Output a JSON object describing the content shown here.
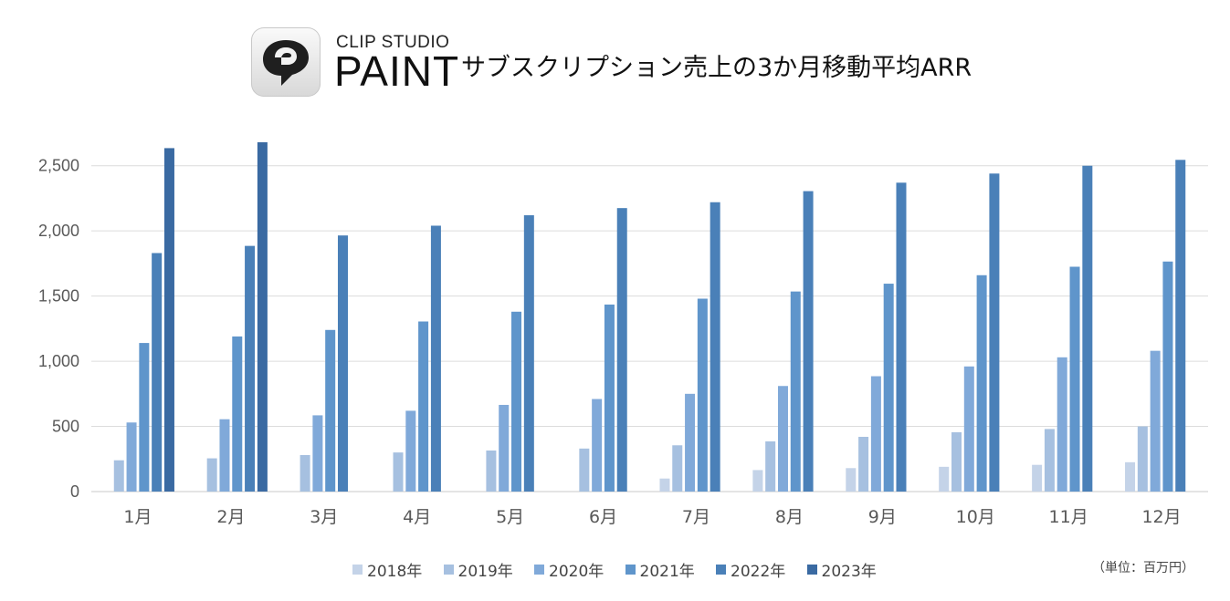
{
  "brand": {
    "line1": "CLIP STUDIO",
    "line2": "PAINT",
    "logo_icon": "clip-studio-paint-logo-icon"
  },
  "unit_note": "（単位：百万円）",
  "colors": [
    "#c4d3e8",
    "#a6c0e0",
    "#80a9d9",
    "#5f95cb",
    "#4a80b8",
    "#3a6aa2"
  ],
  "chart_data": {
    "type": "bar",
    "title": "サブスクリプション売上の3か月移動平均ARR",
    "xlabel": "",
    "ylabel": "",
    "ylim": [
      0,
      2750
    ],
    "yticks": [
      0,
      500,
      1000,
      1500,
      2000,
      2500
    ],
    "ytick_labels": [
      "0",
      "500",
      "1,000",
      "1,500",
      "2,000",
      "2,500"
    ],
    "grid": true,
    "legend": "bottom",
    "categories": [
      "1月",
      "2月",
      "3月",
      "4月",
      "5月",
      "6月",
      "7月",
      "8月",
      "9月",
      "10月",
      "11月",
      "12月"
    ],
    "series": [
      {
        "name": "2018年",
        "values": [
          null,
          null,
          null,
          null,
          null,
          null,
          100,
          165,
          180,
          190,
          205,
          225
        ]
      },
      {
        "name": "2019年",
        "values": [
          240,
          255,
          280,
          300,
          315,
          330,
          355,
          385,
          420,
          455,
          480,
          500
        ]
      },
      {
        "name": "2020年",
        "values": [
          530,
          555,
          585,
          620,
          665,
          710,
          750,
          810,
          885,
          960,
          1030,
          1080
        ]
      },
      {
        "name": "2021年",
        "values": [
          1140,
          1190,
          1240,
          1305,
          1380,
          1435,
          1480,
          1535,
          1595,
          1660,
          1725,
          1765
        ]
      },
      {
        "name": "2022年",
        "values": [
          1830,
          1885,
          1965,
          2040,
          2120,
          2175,
          2220,
          2305,
          2370,
          2440,
          2500,
          2545
        ]
      },
      {
        "name": "2023年",
        "values": [
          2635,
          2680,
          null,
          null,
          null,
          null,
          null,
          null,
          null,
          null,
          null,
          null
        ]
      }
    ]
  }
}
